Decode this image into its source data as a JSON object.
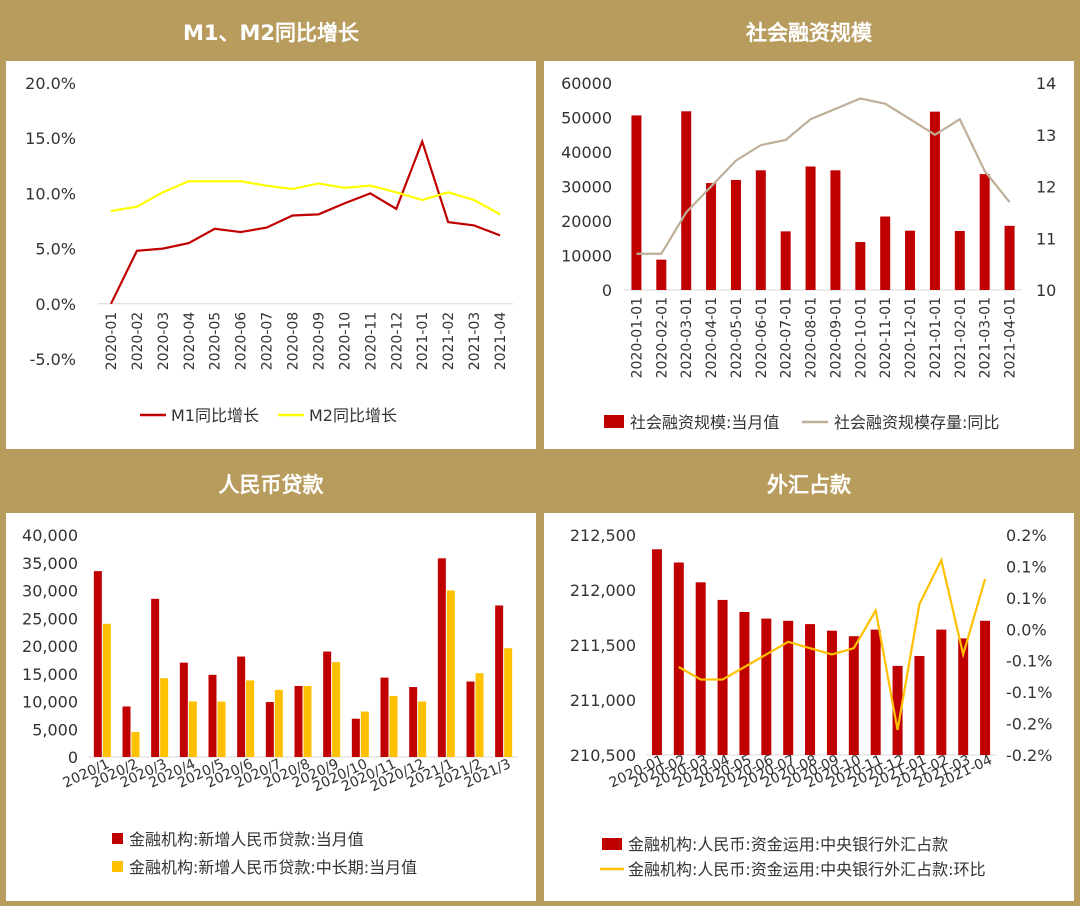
{
  "chart_data": [
    {
      "type": "line",
      "title": "M1、M2同比增长",
      "categories": [
        "2020-01",
        "2020-02",
        "2020-03",
        "2020-04",
        "2020-05",
        "2020-06",
        "2020-07",
        "2020-08",
        "2020-09",
        "2020-10",
        "2020-11",
        "2020-12",
        "2021-01",
        "2021-02",
        "2021-03",
        "2021-04"
      ],
      "series": [
        {
          "name": "M1同比增长",
          "color": "#c00000",
          "values": [
            0.0,
            4.8,
            5.0,
            5.5,
            6.8,
            6.5,
            6.9,
            8.0,
            8.1,
            9.1,
            10.0,
            8.6,
            14.7,
            7.4,
            7.1,
            6.2
          ]
        },
        {
          "name": "M2同比增长",
          "color": "#ffff00",
          "values": [
            8.4,
            8.8,
            10.1,
            11.1,
            11.1,
            11.1,
            10.7,
            10.4,
            10.9,
            10.5,
            10.7,
            10.1,
            9.4,
            10.1,
            9.4,
            8.1
          ]
        }
      ],
      "yticks": [
        "20.0%",
        "15.0%",
        "10.0%",
        "5.0%",
        "0.0%",
        "-5.0%"
      ],
      "ylim": [
        -5,
        20
      ],
      "legend": "bottom"
    },
    {
      "type": "bar",
      "title": "社会融资规模",
      "categories": [
        "2020-01-01",
        "2020-02-01",
        "2020-03-01",
        "2020-04-01",
        "2020-05-01",
        "2020-06-01",
        "2020-07-01",
        "2020-08-01",
        "2020-09-01",
        "2020-10-01",
        "2020-11-01",
        "2020-12-01",
        "2021-01-01",
        "2021-02-01",
        "2021-03-01",
        "2021-04-01"
      ],
      "series": [
        {
          "name": "社会融资规模:当月值",
          "type": "bar",
          "axis": "left",
          "color": "#c00000",
          "values": [
            50600,
            8800,
            51800,
            31000,
            31900,
            34700,
            17000,
            35800,
            34700,
            13900,
            21300,
            17200,
            51700,
            17100,
            33600,
            18600
          ]
        },
        {
          "name": "社会融资规模存量:同比",
          "type": "line",
          "axis": "right",
          "color": "#bfae98",
          "values": [
            10.7,
            10.7,
            11.5,
            12.0,
            12.5,
            12.8,
            12.9,
            13.3,
            13.5,
            13.7,
            13.6,
            13.3,
            13.0,
            13.3,
            12.3,
            11.7
          ]
        }
      ],
      "yticks_left": [
        "60000",
        "50000",
        "40000",
        "30000",
        "20000",
        "10000",
        "0"
      ],
      "yticks_right": [
        "14",
        "13",
        "12",
        "11",
        "10"
      ],
      "ylim_left": [
        0,
        60000
      ],
      "ylim_right": [
        10,
        14
      ],
      "legend": "bottom"
    },
    {
      "type": "bar",
      "title": "人民币贷款",
      "categories": [
        "2020/1",
        "2020/2",
        "2020/3",
        "2020/4",
        "2020/5",
        "2020/6",
        "2020/7",
        "2020/8",
        "2020/9",
        "2020/10",
        "2020/11",
        "2020/12",
        "2021/1",
        "2021/2",
        "2021/3"
      ],
      "series": [
        {
          "name": "金融机构:新增人民币贷款:当月值",
          "color": "#c00000",
          "values": [
            33500,
            9100,
            28500,
            17000,
            14800,
            18100,
            9900,
            12800,
            19000,
            6900,
            14300,
            12600,
            35800,
            13600,
            27300
          ]
        },
        {
          "name": "金融机构:新增人民币贷款:中长期:当月值",
          "color": "#ffc000",
          "values": [
            24000,
            4500,
            14200,
            10000,
            10000,
            13800,
            12100,
            12800,
            17100,
            8200,
            11000,
            10000,
            30000,
            15100,
            19600
          ]
        }
      ],
      "yticks": [
        "40,000",
        "35,000",
        "30,000",
        "25,000",
        "20,000",
        "15,000",
        "10,000",
        "5,000",
        "0"
      ],
      "ylim": [
        0,
        40000
      ],
      "legend": "bottom"
    },
    {
      "type": "bar",
      "title": "外汇占款",
      "categories": [
        "2020-01",
        "2020-02",
        "2020-03",
        "2020-04",
        "2020-05",
        "2020-06",
        "2020-07",
        "2020-08",
        "2020-09",
        "2020-10",
        "2020-11",
        "2020-12",
        "2021-01",
        "2021-02",
        "2021-03",
        "2021-04"
      ],
      "series": [
        {
          "name": "金融机构:人民币:资金运用:中央银行外汇占款",
          "type": "bar",
          "axis": "left",
          "color": "#c00000",
          "values": [
            212370,
            212250,
            212070,
            211910,
            211800,
            211740,
            211720,
            211690,
            211630,
            211580,
            211640,
            211310,
            211400,
            211640,
            211560,
            211720
          ]
        },
        {
          "name": "金融机构:人民币:资金运用:中央银行外汇占款:环比",
          "type": "line",
          "axis": "right",
          "color": "#ffc000",
          "values": [
            null,
            -0.06,
            -0.08,
            -0.08,
            -0.06,
            -0.04,
            -0.02,
            -0.03,
            -0.04,
            -0.03,
            0.03,
            -0.16,
            0.04,
            0.11,
            -0.04,
            0.08
          ]
        }
      ],
      "yticks_left": [
        "212,500",
        "212,000",
        "211,500",
        "211,000",
        "210,500"
      ],
      "yticks_right": [
        "0.2%",
        "0.1%",
        "0.1%",
        "0.0%",
        "-0.1%",
        "-0.1%",
        "-0.2%",
        "-0.2%"
      ],
      "ylim_left": [
        210500,
        212500
      ],
      "ylim_right": [
        -0.2,
        0.15
      ],
      "legend": "bottom"
    }
  ]
}
